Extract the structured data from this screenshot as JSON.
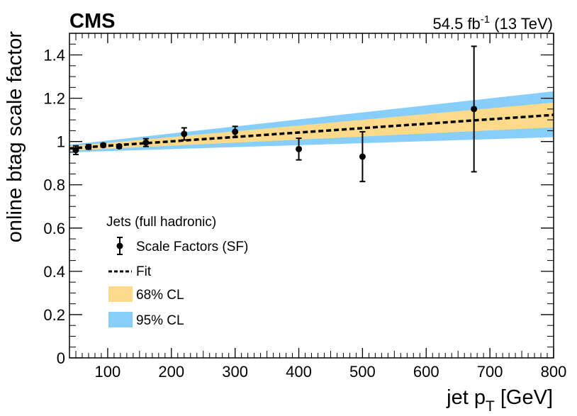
{
  "chart_data": {
    "type": "scatter",
    "experiment_label": "CMS",
    "lumi_label": "54.5 fb",
    "lumi_sup": "-1",
    "energy_label": " (13 TeV)",
    "xlabel_main": "jet p",
    "xlabel_sub": "T",
    "xlabel_unit": " [GeV]",
    "ylabel": "online btag scale factor",
    "xlim": [
      40,
      800
    ],
    "ylim": [
      0,
      1.5
    ],
    "x_ticks": [
      100,
      200,
      300,
      400,
      500,
      600,
      700,
      800
    ],
    "y_ticks": [
      0,
      0.2,
      0.4,
      0.6,
      0.8,
      1,
      1.2,
      1.4
    ],
    "y_tick_labels": [
      "0",
      "0.2",
      "0.4",
      "0.6",
      "0.8",
      "1",
      "1.2",
      "1.4"
    ],
    "legend_title": "Jets (full hadronic)",
    "legend_position": "bottom-left",
    "legend": [
      {
        "label": "Scale Factors (SF)",
        "kind": "marker"
      },
      {
        "label": "Fit",
        "kind": "dashed-line"
      },
      {
        "label": "68% CL",
        "kind": "band",
        "color": "#fdda8a"
      },
      {
        "label": "95% CL",
        "kind": "band",
        "color": "#87cefa"
      }
    ],
    "series": [
      {
        "name": "Scale Factors (SF)",
        "points": [
          {
            "x": 50,
            "y": 0.96,
            "err": 0.02
          },
          {
            "x": 70,
            "y": 0.975,
            "err": 0.01
          },
          {
            "x": 93,
            "y": 0.983,
            "err": 0.008
          },
          {
            "x": 118,
            "y": 0.978,
            "err": 0.008
          },
          {
            "x": 160,
            "y": 0.995,
            "err": 0.018
          },
          {
            "x": 220,
            "y": 1.035,
            "err": 0.028
          },
          {
            "x": 300,
            "y": 1.045,
            "err": 0.025
          },
          {
            "x": 400,
            "y": 0.965,
            "err": 0.05
          },
          {
            "x": 500,
            "y": 0.93,
            "err": 0.115
          },
          {
            "x": 675,
            "y": 1.15,
            "err": 0.29
          }
        ]
      },
      {
        "name": "Fit",
        "x": [
          40,
          800
        ],
        "y": [
          0.968,
          1.123
        ]
      }
    ],
    "bands": {
      "x": [
        40,
        800
      ],
      "cl68_low": [
        0.958,
        1.065
      ],
      "cl68_high": [
        0.978,
        1.18
      ],
      "cl95_low": [
        0.95,
        1.02
      ],
      "cl95_high": [
        0.985,
        1.232
      ]
    },
    "colors": {
      "cl68": "#fdda8a",
      "cl95": "#87cefa",
      "marker": "#000000",
      "fit": "#000000"
    }
  }
}
